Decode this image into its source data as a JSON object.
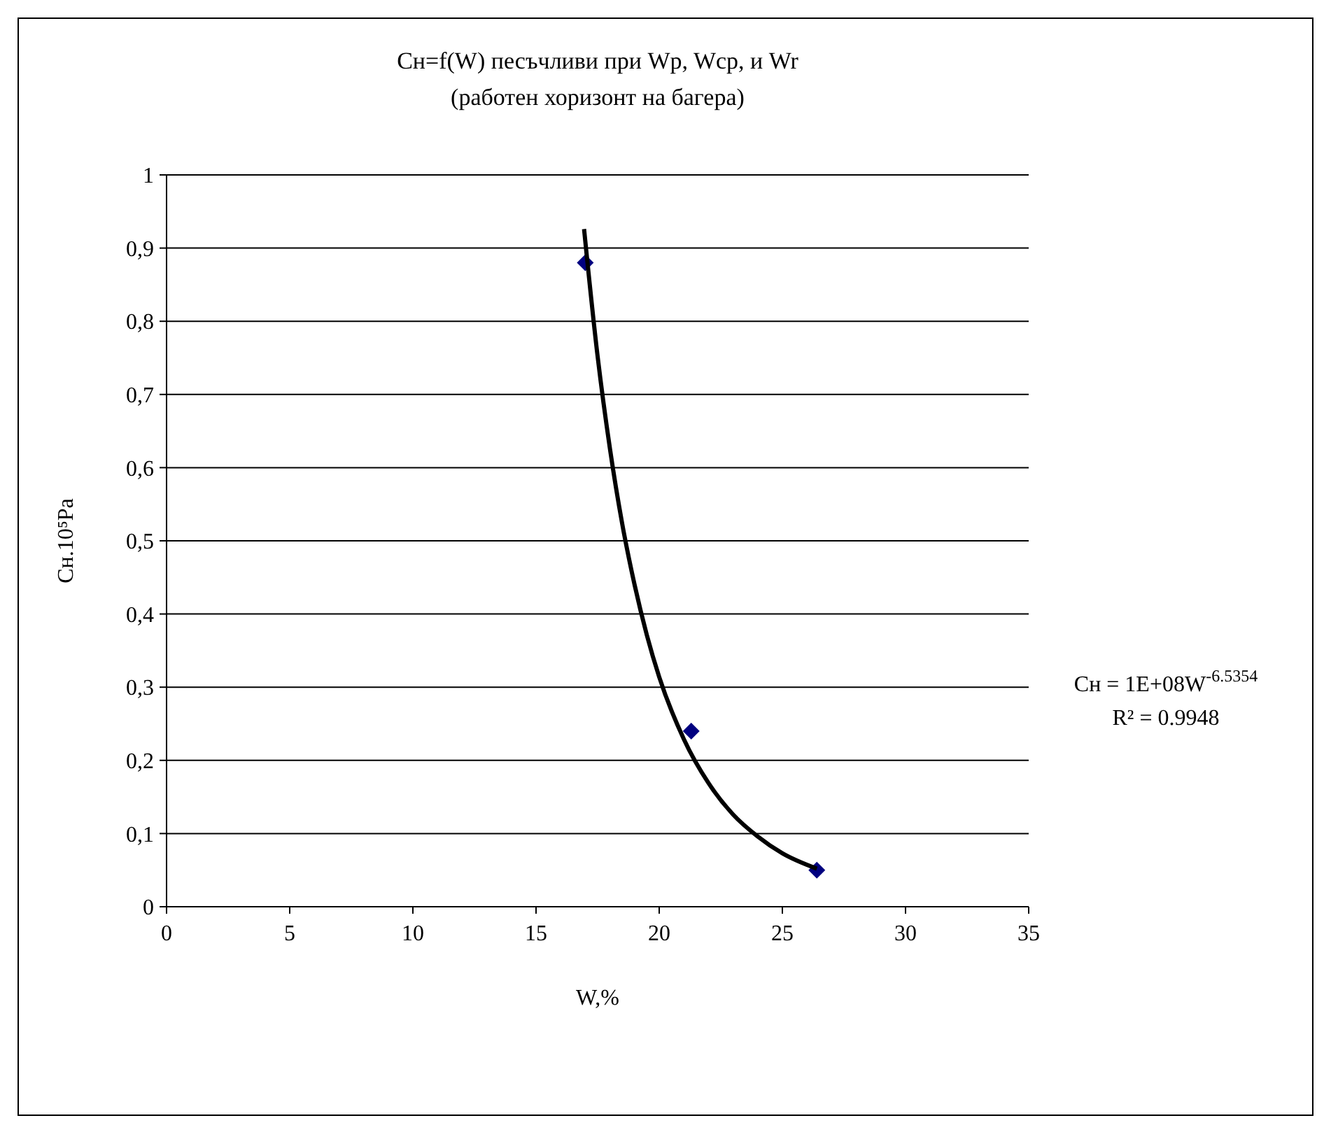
{
  "chart_data": {
    "type": "scatter",
    "title": "Cн=f(W) песъчливи при Wp, Wcp, и Wr",
    "subtitle": "(работен хоризонт на багера)",
    "xlabel": "W,%",
    "ylabel": "Cн.10⁵Pa",
    "xlim": [
      0,
      35
    ],
    "xticks": [
      0,
      5,
      10,
      15,
      20,
      25,
      30,
      35
    ],
    "ylim": [
      0,
      1
    ],
    "yticks": [
      {
        "value": 0,
        "label": "0"
      },
      {
        "value": 0.1,
        "label": "0,1"
      },
      {
        "value": 0.2,
        "label": "0,2"
      },
      {
        "value": 0.3,
        "label": "0,3"
      },
      {
        "value": 0.4,
        "label": "0,4"
      },
      {
        "value": 0.5,
        "label": "0,5"
      },
      {
        "value": 0.6,
        "label": "0,6"
      },
      {
        "value": 0.7,
        "label": "0,7"
      },
      {
        "value": 0.8,
        "label": "0,8"
      },
      {
        "value": 0.9,
        "label": "0,9"
      },
      {
        "value": 1,
        "label": "1"
      }
    ],
    "grid": "y",
    "series": [
      {
        "color": "#000080",
        "marker": "diamond",
        "x": [
          17,
          21.3,
          26.4
        ],
        "values": [
          0.88,
          0.24,
          0.05
        ]
      },
      {
        "type": "line",
        "color": "#000000",
        "marker": "none",
        "line_style": "solid",
        "x": [
          16.95,
          17.5,
          18,
          18.5,
          19,
          19.5,
          20,
          21,
          22,
          23,
          24,
          25,
          26.4
        ],
        "values": [
          0.926,
          0.752,
          0.626,
          0.523,
          0.44,
          0.371,
          0.314,
          0.229,
          0.169,
          0.126,
          0.096,
          0.073,
          0.052
        ]
      }
    ],
    "annotations": [
      "Cн = 1E+08W$^{-6.5354}$",
      "R² = 0.9948"
    ]
  }
}
